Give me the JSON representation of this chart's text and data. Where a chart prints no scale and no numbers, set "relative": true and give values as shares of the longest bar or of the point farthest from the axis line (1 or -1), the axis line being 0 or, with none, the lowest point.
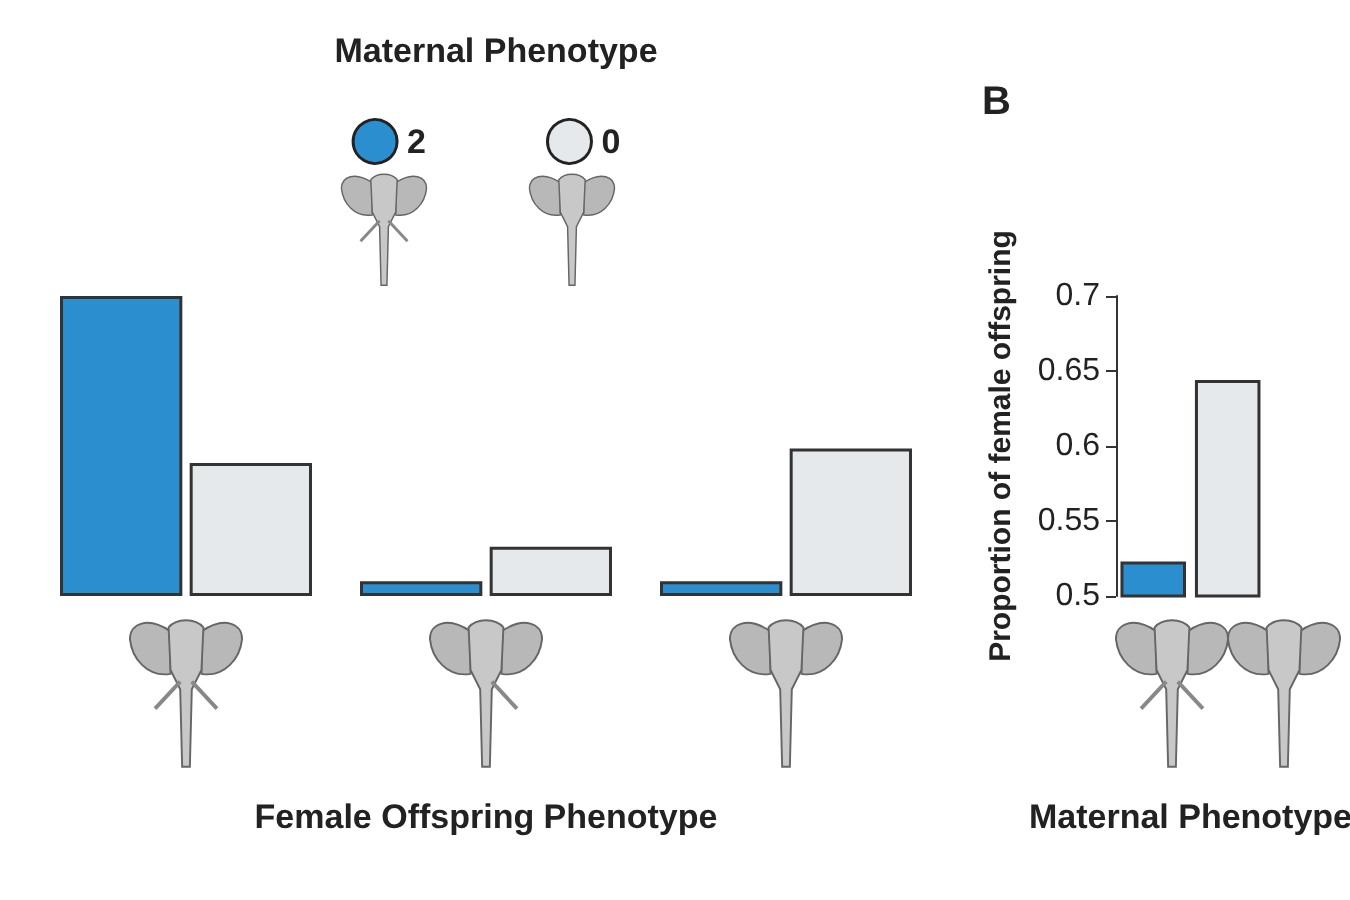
{
  "chart_data": [
    {
      "type": "bar",
      "legend_title": "Maternal Phenotype",
      "xlabel": "Female Offspring Phenotype",
      "categories": [
        null,
        null,
        null
      ],
      "relative": true,
      "legend": "top",
      "grid": false,
      "series": [
        {
          "name": "2",
          "color": "#2b8fcf",
          "values": [
            1,
            0.049,
            0.049
          ]
        },
        {
          "name": "0",
          "color": "#e6e9ec",
          "values": [
            0.443,
            0.164,
            0.492
          ]
        }
      ]
    },
    {
      "type": "bar",
      "title": "B",
      "xlabel": "Maternal Phenotype",
      "ylabel": "Proportion of female offspring",
      "categories": [
        null,
        null
      ],
      "values": [
        0.523,
        0.644
      ],
      "colors": [
        "#2b8fcf",
        "#e6e9ec"
      ],
      "ylim": [
        0.5,
        0.7
      ],
      "yticks": [
        0.5,
        0.55,
        0.6,
        0.65,
        0.7
      ],
      "grid": false,
      "legend": false
    }
  ]
}
